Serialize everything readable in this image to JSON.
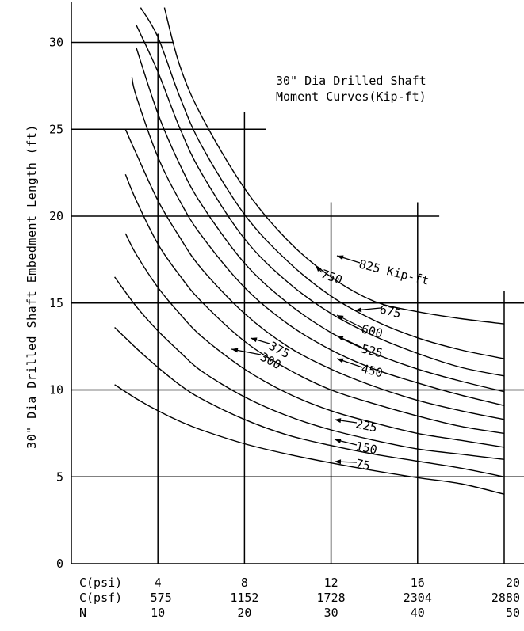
{
  "chart_data": {
    "type": "line",
    "title_lines": [
      "30\" Dia Drilled Shaft",
      "Moment Curves(Kip-ft)"
    ],
    "ylabel": "30\" Dia Drilled Shaft Embedment Length (ft)",
    "ylim": [
      0,
      32
    ],
    "xlim": [
      0,
      21
    ],
    "yticks": [
      0,
      5,
      10,
      15,
      20,
      25,
      30
    ],
    "x_tick_rows": [
      {
        "label": "C(psi)",
        "values": [
          "4",
          "8",
          "12",
          "16",
          "20"
        ]
      },
      {
        "label": "C(psf)",
        "values": [
          "575",
          "1152",
          "1728",
          "2304",
          "2880"
        ]
      },
      {
        "label": "N",
        "values": [
          "10",
          "20",
          "30",
          "40",
          "50"
        ]
      }
    ],
    "x_tick_positions": [
      4,
      8,
      12,
      16,
      20
    ],
    "grid": "partial",
    "series": [
      {
        "name": "75",
        "label": "75",
        "x": [
          2,
          3,
          4,
          5,
          6,
          8,
          10,
          12,
          14,
          16,
          18,
          20
        ],
        "y": [
          10.3,
          9.5,
          8.8,
          8.2,
          7.7,
          6.9,
          6.3,
          5.8,
          5.35,
          4.95,
          4.6,
          4.0
        ]
      },
      {
        "name": "150",
        "label": "150",
        "x": [
          2,
          3,
          4,
          5,
          6,
          8,
          10,
          12,
          14,
          16,
          18,
          20
        ],
        "y": [
          13.6,
          12.4,
          11.3,
          10.3,
          9.5,
          8.3,
          7.4,
          6.8,
          6.3,
          5.9,
          5.5,
          5.0
        ]
      },
      {
        "name": "225",
        "label": "225",
        "x": [
          2,
          3,
          4,
          5,
          6,
          8,
          10,
          12,
          14,
          16,
          18,
          20
        ],
        "y": [
          16.5,
          14.8,
          13.4,
          12.2,
          11.1,
          9.6,
          8.5,
          7.7,
          7.1,
          6.6,
          6.3,
          6.0
        ]
      },
      {
        "name": "300",
        "label": "300",
        "x": [
          2.5,
          3,
          4,
          5,
          6,
          8,
          10,
          12,
          14,
          16,
          18,
          20
        ],
        "y": [
          19.0,
          17.8,
          15.9,
          14.4,
          13.1,
          11.2,
          9.8,
          8.8,
          8.1,
          7.5,
          7.1,
          6.7
        ]
      },
      {
        "name": "375",
        "label": "375",
        "x": [
          2.5,
          3,
          4,
          5,
          6,
          8,
          10,
          12,
          14,
          16,
          18,
          20
        ],
        "y": [
          22.4,
          20.9,
          18.4,
          16.6,
          15.1,
          12.8,
          11.2,
          10.0,
          9.2,
          8.5,
          7.9,
          7.5
        ]
      },
      {
        "name": "450",
        "label": "450",
        "x": [
          2.5,
          3,
          4,
          5,
          6,
          8,
          10,
          12,
          14,
          16,
          18,
          20
        ],
        "y": [
          25.0,
          23.6,
          20.9,
          18.8,
          17.0,
          14.4,
          12.5,
          11.2,
          10.2,
          9.4,
          8.8,
          8.3
        ]
      },
      {
        "name": "525",
        "label": "525",
        "x": [
          2.8,
          3,
          4,
          5,
          6,
          8,
          10,
          12,
          14,
          16,
          18,
          20
        ],
        "y": [
          28.0,
          26.9,
          23.4,
          20.9,
          18.9,
          15.9,
          13.8,
          12.3,
          11.2,
          10.4,
          9.7,
          9.1
        ]
      },
      {
        "name": "600",
        "label": "600",
        "x": [
          3,
          4,
          5,
          6,
          8,
          10,
          12,
          14,
          16,
          18,
          20
        ],
        "y": [
          29.7,
          25.9,
          23.0,
          20.7,
          17.3,
          15.0,
          13.3,
          12.1,
          11.2,
          10.5,
          9.9
        ]
      },
      {
        "name": "675",
        "label": "675",
        "x": [
          3,
          4,
          5,
          6,
          8,
          10,
          12,
          14,
          16,
          18,
          20
        ],
        "y": [
          31.0,
          28.3,
          25.1,
          22.5,
          18.7,
          16.2,
          14.4,
          13.1,
          12.1,
          11.3,
          10.8
        ]
      },
      {
        "name": "750",
        "label": "750",
        "x": [
          3.2,
          4,
          5,
          6,
          8,
          10,
          12,
          14,
          16,
          18,
          20
        ],
        "y": [
          32.0,
          30.3,
          26.9,
          24.1,
          20.1,
          17.4,
          15.4,
          14.0,
          13.0,
          12.3,
          11.8
        ]
      },
      {
        "name": "825 Kip-ft",
        "label": "825 Kip-ft",
        "x": [
          4.3,
          5,
          6,
          8,
          10,
          12,
          14,
          16,
          18,
          20
        ],
        "y": [
          32.0,
          28.7,
          25.8,
          21.6,
          18.6,
          16.5,
          15.1,
          14.5,
          14.1,
          13.8
        ]
      }
    ]
  }
}
